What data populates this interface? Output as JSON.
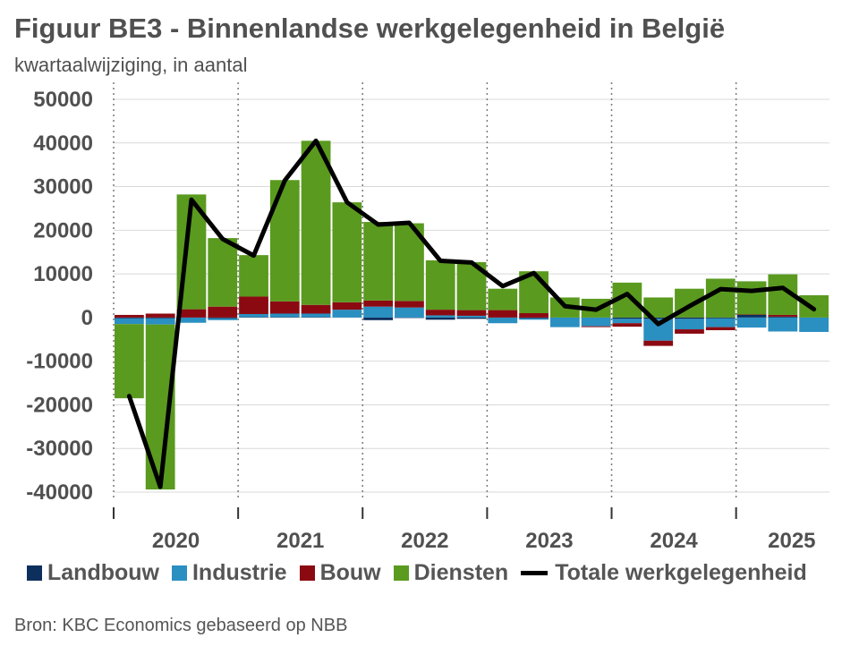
{
  "title": "Figuur BE3 - Binnenlandse werkgelegenheid in België",
  "subtitle": "kwartaalwijziging, in aantal",
  "source": "Bron: KBC Economics gebaseerd op NBB",
  "colors": {
    "Landbouw": "#0d2f5e",
    "Industrie": "#2a8fc1",
    "Bouw": "#8b0a12",
    "Diensten": "#5a9a1f",
    "Totale werkgelegenheid": "#000000",
    "grid": "#d9d9d9",
    "axis_text": "#505050"
  },
  "chart_data": {
    "type": "bar",
    "stacked": true,
    "title": "Figuur BE3 - Binnenlandse werkgelegenheid in België",
    "subtitle": "kwartaalwijziging, in aantal",
    "xlabel": "",
    "ylabel": "",
    "ylim": [
      -40000,
      50000
    ],
    "yticks": [
      50000,
      40000,
      30000,
      20000,
      10000,
      0,
      -10000,
      -20000,
      -30000,
      -40000
    ],
    "ytick_labels": [
      "50000",
      "40000",
      "30000",
      "20000",
      "10000",
      "0",
      "-10000",
      "-20000",
      "-30000",
      "-40000"
    ],
    "grid": true,
    "legend_position": "bottom",
    "year_labels": [
      "2020",
      "2021",
      "2022",
      "2023",
      "2024",
      "2025"
    ],
    "categories": [
      "2020Q1",
      "2020Q2",
      "2020Q3",
      "2020Q4",
      "2021Q1",
      "2021Q2",
      "2021Q3",
      "2021Q4",
      "2022Q1",
      "2022Q2",
      "2022Q3",
      "2022Q4",
      "2023Q1",
      "2023Q2",
      "2023Q3",
      "2023Q4",
      "2024Q1",
      "2024Q2",
      "2024Q3",
      "2024Q4",
      "2025Q1",
      "2025Q2",
      "2025Q3"
    ],
    "series": [
      {
        "name": "Landbouw",
        "kind": "bar",
        "values": [
          -200,
          -200,
          0,
          -200,
          100,
          100,
          100,
          0,
          -600,
          -100,
          -500,
          -300,
          0,
          -200,
          0,
          0,
          -300,
          -300,
          -300,
          -200,
          600,
          200,
          0
        ]
      },
      {
        "name": "Industrie",
        "kind": "bar",
        "values": [
          -1300,
          -1400,
          -1200,
          -400,
          700,
          800,
          800,
          1800,
          2500,
          2300,
          500,
          400,
          -1300,
          -300,
          -2200,
          -2000,
          -1000,
          -5000,
          -2400,
          -2000,
          -2300,
          -3200,
          -3300
        ]
      },
      {
        "name": "Bouw",
        "kind": "bar",
        "values": [
          600,
          900,
          1900,
          2500,
          4000,
          2800,
          2000,
          1700,
          1400,
          1500,
          1300,
          1300,
          1700,
          1000,
          0,
          -200,
          -800,
          -1200,
          -1000,
          -700,
          100,
          400,
          0
        ]
      },
      {
        "name": "Diensten",
        "kind": "bar",
        "values": [
          -17000,
          -37800,
          26300,
          15700,
          9500,
          27800,
          37600,
          22900,
          18000,
          17800,
          11300,
          11000,
          4900,
          9600,
          4600,
          4300,
          8000,
          4600,
          6600,
          8900,
          7600,
          9300,
          5100
        ]
      },
      {
        "name": "Totale werkgelegenheid",
        "kind": "line",
        "values": [
          -18000,
          -38800,
          27000,
          18000,
          14200,
          31400,
          40500,
          26400,
          21300,
          21700,
          13000,
          12600,
          7200,
          10200,
          2600,
          1800,
          5400,
          -1500,
          2600,
          6500,
          6100,
          6800,
          1900
        ]
      }
    ]
  }
}
